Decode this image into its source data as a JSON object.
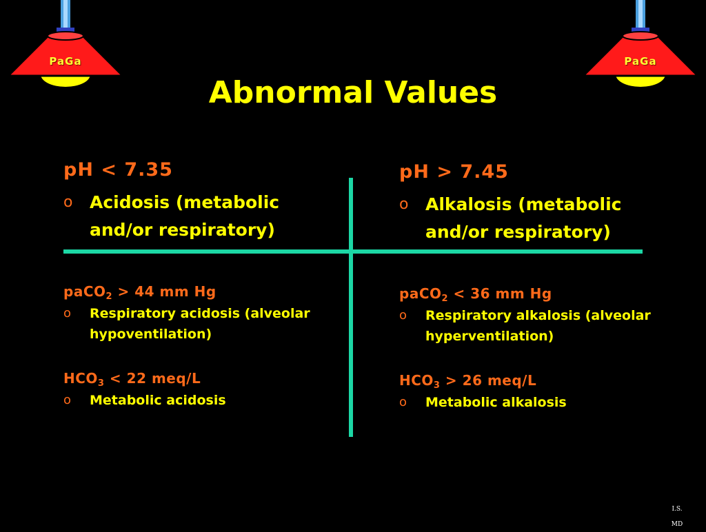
{
  "title": "Abnormal Values",
  "lamps": {
    "label": "PaGa"
  },
  "left": {
    "ph_heading": "pH < 7.35",
    "ph_bullet": "Acidosis (metabolic and/or respiratory)",
    "paco2_prefix": "paCO",
    "paco2_sub": "2",
    "paco2_suffix": " > 44 mm Hg",
    "paco2_bullet": "Respiratory acidosis (alveolar hypoventilation)",
    "hco3_prefix": "HCO",
    "hco3_sub": "3",
    "hco3_suffix": " < 22 meq/L",
    "hco3_bullet": "Metabolic acidosis"
  },
  "right": {
    "ph_heading": "pH > 7.45",
    "ph_bullet": "Alkalosis (metabolic and/or respiratory)",
    "paco2_prefix": "paCO",
    "paco2_sub": "2",
    "paco2_suffix": " < 36 mm Hg",
    "paco2_bullet": "Respiratory alkalosis (alveolar hyperventilation)",
    "hco3_prefix": "HCO",
    "hco3_sub": "3",
    "hco3_suffix": " > 26 meq/L",
    "hco3_bullet": "Metabolic alkalosis"
  },
  "bullet_marker": "o",
  "footer": {
    "line1": "I.S.",
    "line2": "MD"
  },
  "colors": {
    "title": "#ffff00",
    "heading": "#ff6a1a",
    "divider": "#1cd7a5",
    "background": "#000000"
  }
}
